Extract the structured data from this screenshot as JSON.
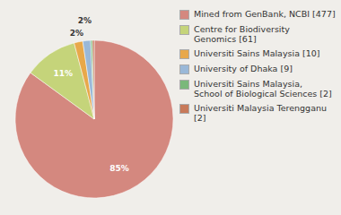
{
  "chart_data": {
    "type": "pie",
    "categories": [
      "Mined from GenBank, NCBI [477]",
      "Centre for Biodiversity\nGenomics [61]",
      "Universiti Sains Malaysia [10]",
      "University of Dhaka [9]",
      "Universiti Sains Malaysia,\nSchool of Biological Sciences [2]",
      "Universiti Malaysia Terengganu [2]"
    ],
    "values": [
      85.03,
      10.87,
      1.78,
      1.6,
      0.36,
      0.36
    ],
    "value_labels": [
      "85%",
      "11%",
      "2%",
      "2%",
      null,
      null
    ],
    "colors": [
      "#d4887f",
      "#c5d47a",
      "#e8a84a",
      "#9ab8d8",
      "#7ab87a",
      "#c87a5a"
    ],
    "data_labels": true,
    "legend": "right"
  }
}
